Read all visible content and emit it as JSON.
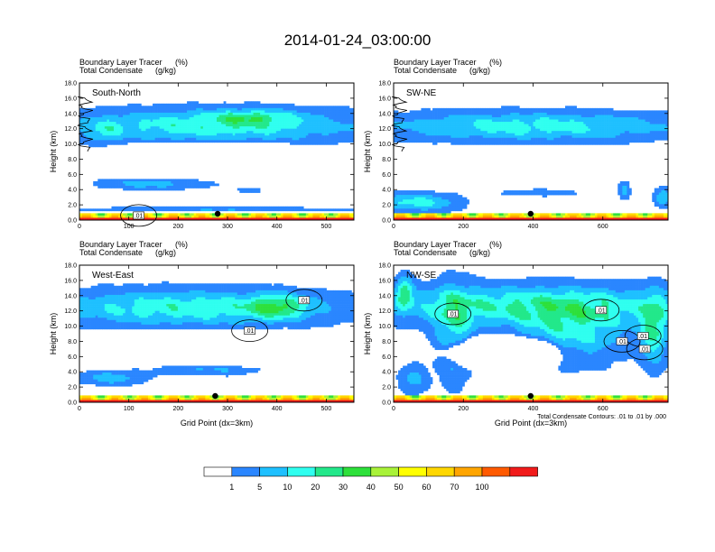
{
  "title": "2014-01-24_03:00:00",
  "colors": {
    "levels": [
      "#ffffff",
      "#2a86ff",
      "#1ec0ff",
      "#2fffef",
      "#22e88a",
      "#2de03a",
      "#a8f238",
      "#ffff00",
      "#ffd700",
      "#ffa500",
      "#ff5a00",
      "#f11b1b"
    ],
    "contour": "#000000",
    "marker": "#000000"
  },
  "colorbar": {
    "labels": [
      "1",
      "5",
      "10",
      "20",
      "30",
      "40",
      "50",
      "60",
      "70",
      "100"
    ]
  },
  "contour_note": "Total Condensate Contours: .01 to .01 by .000",
  "chart_data": [
    {
      "type": "heatmap",
      "panel_label": "South-North",
      "subtitle_left": [
        "Boundary Layer Tracer",
        "Total Condensate"
      ],
      "subtitle_right": [
        "(%)",
        "(g/kg)"
      ],
      "ylabel": "Height (km)",
      "xlabel": "",
      "xlim": [
        0,
        556
      ],
      "ylim": [
        0,
        18
      ],
      "x_ticks": [
        0,
        100,
        200,
        300,
        400,
        500
      ],
      "y_ticks": [
        "0.0",
        "2.0",
        "4.0",
        "6.0",
        "8.0",
        "10.0",
        "12.0",
        "14.0",
        "16.0",
        "18.0"
      ],
      "marker_x": 280,
      "contour_labels": [
        {
          "text": ".01",
          "x": 120,
          "z": 0.6
        }
      ],
      "contour_edge": "west",
      "blobs": [
        {
          "xc": 0.5,
          "zc": 12.4,
          "sx": 0.55,
          "sz": 2.2,
          "amp": 3.3,
          "wob": 0.9
        },
        {
          "xc": 0.63,
          "zc": 13.5,
          "sx": 0.14,
          "sz": 0.9,
          "amp": 2.2,
          "wob": 0.5
        },
        {
          "xc": 0.09,
          "zc": 11.5,
          "sx": 0.06,
          "sz": 1.6,
          "amp": 1.5,
          "wob": 0.6
        },
        {
          "xc": 0.27,
          "zc": 4.8,
          "sx": 0.2,
          "sz": 0.8,
          "amp": 2.0,
          "wob": 0.7
        },
        {
          "xc": 0.45,
          "zc": 6.3,
          "sx": 0.08,
          "sz": 0.3,
          "amp": 1.1,
          "wob": 0.4
        },
        {
          "xc": 0.62,
          "zc": 3.9,
          "sx": 0.05,
          "sz": 0.4,
          "amp": 1.0,
          "wob": 0.4
        },
        {
          "xc": 0.5,
          "zc": 1.4,
          "sx": 0.6,
          "sz": 0.3,
          "amp": 1.4,
          "wob": 0.6
        }
      ],
      "cutouts": [
        {
          "xc": 0.47,
          "zc": 7.8,
          "sx": 0.45,
          "sz": 2.0,
          "amp": 5.0
        }
      ],
      "surface": 2.8
    },
    {
      "type": "heatmap",
      "panel_label": "SW-NE",
      "subtitle_left": [
        "Boundary Layer Tracer",
        "Total Condensate"
      ],
      "subtitle_right": [
        "(%)",
        "(g/kg)"
      ],
      "ylabel": "Height (km)",
      "xlabel": "",
      "xlim": [
        0,
        787
      ],
      "ylim": [
        0,
        18
      ],
      "x_ticks": [
        0,
        200,
        400,
        600
      ],
      "y_ticks": [
        "0.0",
        "2.0",
        "4.0",
        "6.0",
        "8.0",
        "10.0",
        "12.0",
        "14.0",
        "16.0",
        "18.0"
      ],
      "marker_x": 393,
      "contour_labels": [],
      "contour_edge": "west",
      "blobs": [
        {
          "xc": 0.5,
          "zc": 12.3,
          "sx": 0.58,
          "sz": 1.9,
          "amp": 3.0,
          "wob": 0.9
        },
        {
          "xc": 0.08,
          "zc": 2.3,
          "sx": 0.15,
          "sz": 1.2,
          "amp": 3.0,
          "wob": 0.6
        },
        {
          "xc": 0.84,
          "zc": 4.0,
          "sx": 0.02,
          "sz": 1.3,
          "amp": 1.8,
          "wob": 0.4
        },
        {
          "xc": 0.98,
          "zc": 3.0,
          "sx": 0.03,
          "sz": 1.2,
          "amp": 2.4,
          "wob": 0.4
        },
        {
          "xc": 0.52,
          "zc": 3.6,
          "sx": 0.18,
          "sz": 0.5,
          "amp": 1.0,
          "wob": 0.6
        }
      ],
      "cutouts": [
        {
          "xc": 0.47,
          "zc": 7.2,
          "sx": 0.46,
          "sz": 1.9,
          "amp": 5.0
        }
      ],
      "surface": 3.0
    },
    {
      "type": "heatmap",
      "panel_label": "West-East",
      "subtitle_left": [
        "Boundary Layer Tracer",
        "Total Condensate"
      ],
      "subtitle_right": [
        "(%)",
        "(g/kg)"
      ],
      "ylabel": "Height (km)",
      "xlabel": "Grid Point (dx=3km)",
      "xlim": [
        0,
        556
      ],
      "ylim": [
        0,
        18
      ],
      "x_ticks": [
        0,
        100,
        200,
        300,
        400,
        500
      ],
      "y_ticks": [
        "0.0",
        "2.0",
        "4.0",
        "6.0",
        "8.0",
        "10.0",
        "12.0",
        "14.0",
        "16.0",
        "18.0"
      ],
      "marker_x": 275,
      "contour_labels": [
        {
          "text": ".01",
          "x": 455,
          "z": 13.4
        },
        {
          "text": ".01",
          "x": 345,
          "z": 9.4
        }
      ],
      "contour_edge": "none",
      "blobs": [
        {
          "xc": 0.4,
          "zc": 12.4,
          "sx": 0.55,
          "sz": 2.4,
          "amp": 3.2,
          "wob": 0.9
        },
        {
          "xc": 0.72,
          "zc": 12.5,
          "sx": 0.1,
          "sz": 1.5,
          "amp": 3.0,
          "wob": 0.5
        },
        {
          "xc": 0.12,
          "zc": 3.2,
          "sx": 0.12,
          "sz": 0.9,
          "amp": 2.2,
          "wob": 0.6
        },
        {
          "xc": 0.47,
          "zc": 4.3,
          "sx": 0.18,
          "sz": 0.8,
          "amp": 1.5,
          "wob": 0.7
        }
      ],
      "cutouts": [
        {
          "xc": 0.5,
          "zc": 7.3,
          "sx": 0.5,
          "sz": 1.9,
          "amp": 5.0
        }
      ],
      "surface": 2.8
    },
    {
      "type": "heatmap",
      "panel_label": "NW-SE",
      "subtitle_left": [
        "Boundary Layer Tracer",
        "Total Condensate"
      ],
      "subtitle_right": [
        "(%)",
        "(g/kg)"
      ],
      "ylabel": "Height (km)",
      "xlabel": "Grid Point (dx=3km)",
      "xlim": [
        0,
        787
      ],
      "ylim": [
        0,
        18
      ],
      "x_ticks": [
        0,
        200,
        400,
        600
      ],
      "y_ticks": [
        "0.0",
        "2.0",
        "4.0",
        "6.0",
        "8.0",
        "10.0",
        "12.0",
        "14.0",
        "16.0",
        "18.0"
      ],
      "marker_x": 393,
      "contour_labels": [
        {
          "text": ".01",
          "x": 170,
          "z": 11.6
        },
        {
          "text": ".01",
          "x": 595,
          "z": 12.1
        },
        {
          "text": ".01",
          "x": 715,
          "z": 8.7
        },
        {
          "text": ".01",
          "x": 655,
          "z": 8.0
        },
        {
          "text": ".01",
          "x": 720,
          "z": 7.0
        }
      ],
      "contour_edge": "none",
      "blobs": [
        {
          "xc": 0.5,
          "zc": 12.7,
          "sx": 0.58,
          "sz": 2.6,
          "amp": 3.4,
          "wob": 1.0
        },
        {
          "xc": 0.22,
          "zc": 9.0,
          "sx": 0.07,
          "sz": 6.0,
          "amp": 2.5,
          "wob": 0.8
        },
        {
          "xc": 0.65,
          "zc": 9.0,
          "sx": 0.2,
          "sz": 4.0,
          "amp": 2.6,
          "wob": 0.9
        },
        {
          "xc": 0.95,
          "zc": 9.5,
          "sx": 0.05,
          "sz": 4.5,
          "amp": 3.3,
          "wob": 0.7
        },
        {
          "xc": 0.04,
          "zc": 14.5,
          "sx": 0.03,
          "sz": 2.0,
          "amp": 3.5,
          "wob": 0.5
        },
        {
          "xc": 0.07,
          "zc": 3.0,
          "sx": 0.05,
          "sz": 2.0,
          "amp": 1.8,
          "wob": 0.6
        }
      ],
      "cutouts": [
        {
          "xc": 0.4,
          "zc": 6.5,
          "sx": 0.2,
          "sz": 2.0,
          "amp": 5.0
        }
      ],
      "surface": 3.0
    }
  ]
}
